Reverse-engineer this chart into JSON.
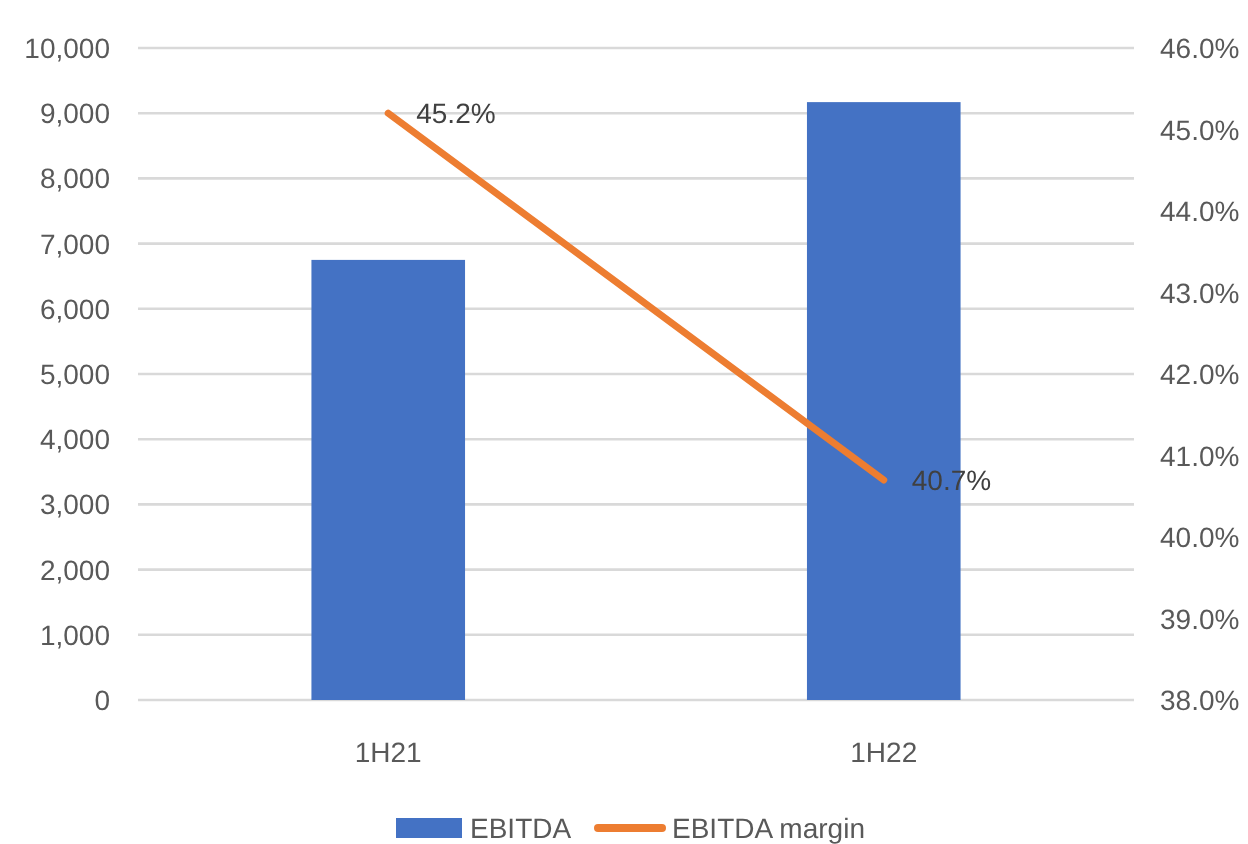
{
  "chart_data": {
    "type": "bar",
    "categories": [
      "1H21",
      "1H22"
    ],
    "series": [
      {
        "name": "EBITDA",
        "color": "#4472c4",
        "values": [
          6750,
          9170
        ]
      },
      {
        "name": "EBITDA margin",
        "type": "line",
        "axis": "y2",
        "color": "#ed7d31",
        "values": [
          45.2,
          40.7
        ],
        "value_labels": [
          "45.2%",
          "40.7%"
        ]
      }
    ],
    "ylim": [
      0,
      10000
    ],
    "yticks": [
      0,
      {
        "value": 1000,
        "label": "1,000"
      },
      {
        "value": 2000,
        "label": "2,000"
      },
      {
        "value": 3000,
        "label": "3,000"
      },
      {
        "value": 4000,
        "label": "4,000"
      },
      {
        "value": 5000,
        "label": "5,000"
      },
      {
        "value": 6000,
        "label": "6,000"
      },
      {
        "value": 7000,
        "label": "7,000"
      },
      {
        "value": 8000,
        "label": "8,000"
      },
      {
        "value": 9000,
        "label": "9,000"
      },
      {
        "value": 10000,
        "label": "10,000"
      }
    ],
    "y2lim": [
      38,
      46
    ],
    "y2ticks": [
      {
        "value": 38,
        "label": "38.0%"
      },
      {
        "value": 39,
        "label": "39.0%"
      },
      {
        "value": 40,
        "label": "40.0%"
      },
      {
        "value": 41,
        "label": "41.0%"
      },
      {
        "value": 42,
        "label": "42.0%"
      },
      {
        "value": 43,
        "label": "43.0%"
      },
      {
        "value": 44,
        "label": "44.0%"
      },
      {
        "value": 45,
        "label": "45.0%"
      },
      {
        "value": 46,
        "label": "46.0%"
      }
    ],
    "grid": "y",
    "legend": "bottom",
    "marker": "none"
  }
}
